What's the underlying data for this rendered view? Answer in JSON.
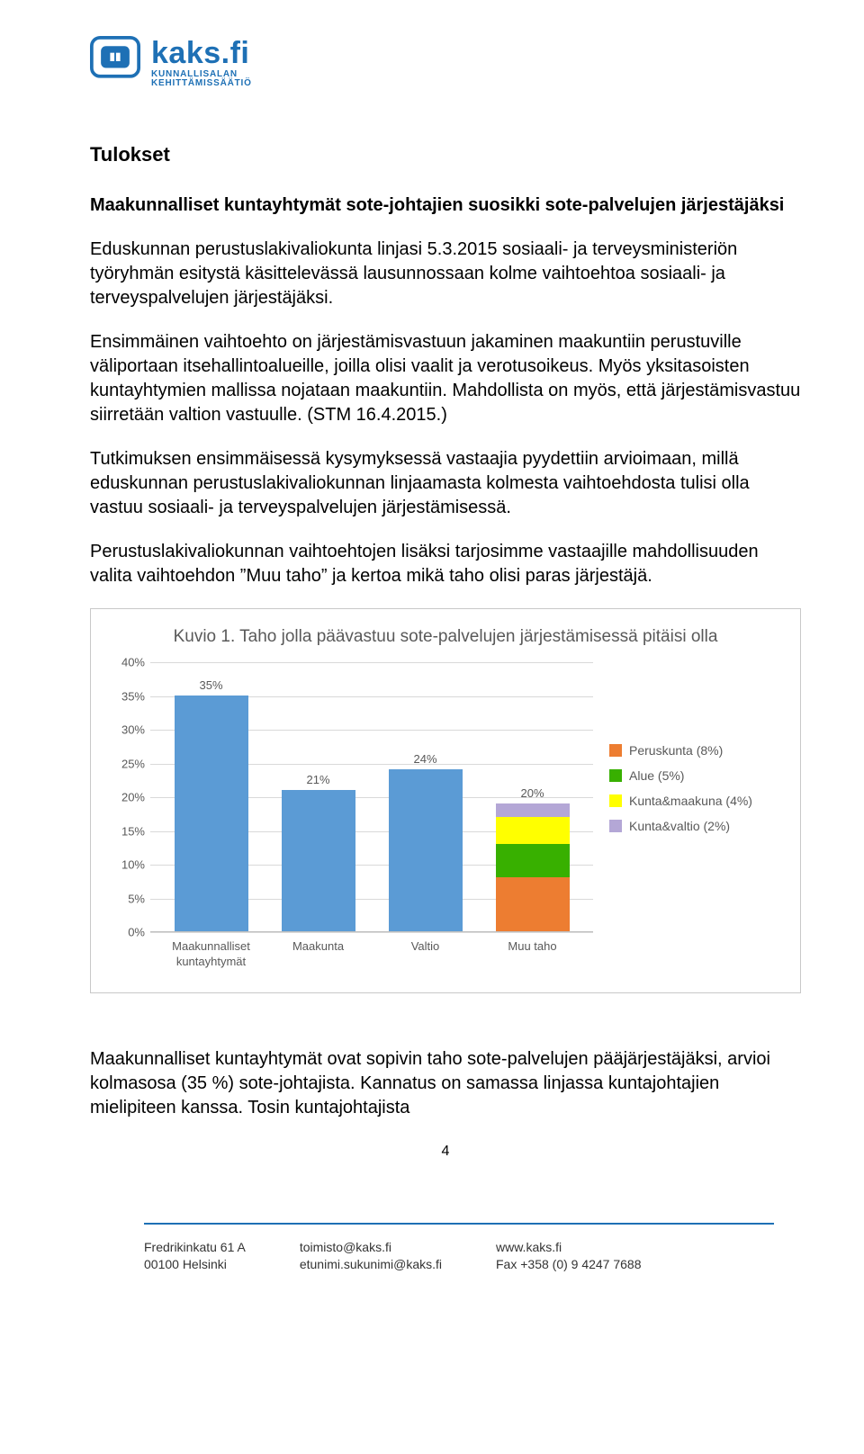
{
  "logo": {
    "brand": "kaks.fi",
    "line2": "KUNNALLISALAN",
    "line3": "KEHITTÄMISSÄÄTIÖ",
    "accent": "#1e70b5"
  },
  "headings": {
    "tulokset": "Tulokset",
    "sub": "Maakunnalliset kuntayhtymät sote-johtajien suosikki sote-palvelujen järjestäjäksi"
  },
  "paras": {
    "p1": "Eduskunnan perustuslakivaliokunta linjasi 5.3.2015 sosiaali- ja terveysministeriön työryhmän esitystä käsittelevässä lausunnossaan kolme vaihtoehtoa sosiaali- ja terveyspalvelujen järjestäjäksi.",
    "p2": "Ensimmäinen vaihtoehto on järjestämisvastuun jakaminen maakuntiin perustuville väliportaan itsehallintoalueille, joilla olisi vaalit ja verotusoikeus. Myös yksitasoisten kuntayhtymien mallissa nojataan maakuntiin. Mahdollista on myös, että järjestämisvastuu siirretään valtion vastuulle. (STM 16.4.2015.)",
    "p3": "Tutkimuksen ensimmäisessä kysymyksessä vastaajia pyydettiin arvioimaan, millä eduskunnan perustuslakivaliokunnan linjaamasta kolmesta vaihtoehdosta tulisi olla vastuu sosiaali- ja terveyspalvelujen järjestämisessä.",
    "p4": "Perustuslakivaliokunnan vaihtoehtojen lisäksi tarjosimme vastaajille mahdollisuuden valita vaihtoehdon ”Muu taho” ja kertoa mikä taho olisi paras järjestäjä.",
    "p5": "Maakunnalliset kuntayhtymät ovat sopivin taho sote-palvelujen pääjärjestäjäksi, arvioi kolmasosa (35 %) sote-johtajista. Kannatus on samassa linjassa kuntajohtajien mielipiteen kanssa. Tosin kuntajohtajista"
  },
  "chart": {
    "title": "Kuvio 1. Taho jolla päävastuu sote-palvelujen järjestämisessä pitäisi olla",
    "type": "bar",
    "y_max": 40,
    "y_ticks": [
      0,
      5,
      10,
      15,
      20,
      25,
      30,
      35,
      40
    ],
    "y_tick_labels": [
      "0%",
      "5%",
      "10%",
      "15%",
      "20%",
      "25%",
      "30%",
      "35%",
      "40%"
    ],
    "bar_color": "#5b9bd5",
    "grid_color": "#d9d9d9",
    "axis_text_color": "#595959",
    "categories": [
      "Maakunnalliset kuntayhtymät",
      "Maakunta",
      "Valtio",
      "Muu taho"
    ],
    "values": [
      35,
      21,
      24,
      20
    ],
    "value_labels": [
      "35%",
      "21%",
      "24%",
      "20%"
    ],
    "stack_index": 3,
    "stack_segments": [
      {
        "label": "Kunta&valtio (2%)",
        "value": 2,
        "color": "#b4a7d6"
      },
      {
        "label": "Kunta&maakuna (4%)",
        "value": 4,
        "color": "#ffff00"
      },
      {
        "label": "Alue (5%)",
        "value": 5,
        "color": "#38b000"
      },
      {
        "label": "Peruskunta (8%)",
        "value": 8,
        "color": "#ed7d31"
      }
    ],
    "legend_order": [
      {
        "label": "Peruskunta (8%)",
        "color": "#ed7d31"
      },
      {
        "label": "Alue (5%)",
        "color": "#38b000"
      },
      {
        "label": "Kunta&maakuna (4%)",
        "color": "#ffff00"
      },
      {
        "label": "Kunta&valtio (2%)",
        "color": "#b4a7d6"
      }
    ]
  },
  "page_number": "4",
  "footer": {
    "col1a": "Fredrikinkatu 61 A",
    "col1b": "00100 Helsinki",
    "col2a": "toimisto@kaks.fi",
    "col2b": "etunimi.sukunimi@kaks.fi",
    "col3a": "www.kaks.fi",
    "col3b": "Fax +358 (0) 9 4247 7688"
  }
}
